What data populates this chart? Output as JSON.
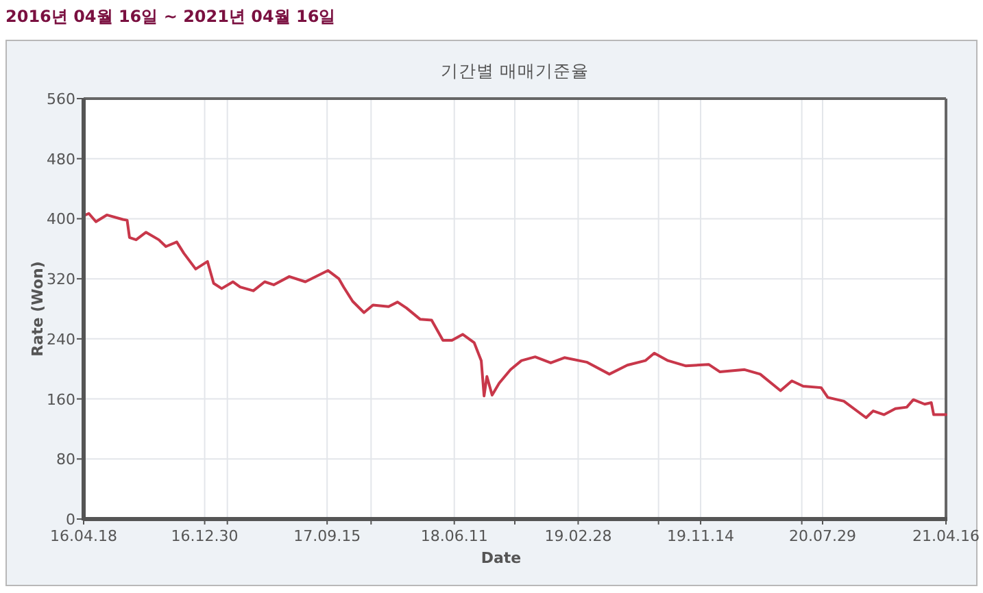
{
  "chart_data": {
    "type": "line",
    "title": "기간별 매매기준율",
    "subtitle": "2016년 04월 16일 ~ 2021년 04월 16일",
    "xlabel": "Date",
    "ylabel": "Rate (Won)",
    "x": [
      "2016-04-18",
      "2016-04-29",
      "2016-05-14",
      "2016-06-06",
      "2016-07-10",
      "2016-07-19",
      "2016-07-24",
      "2016-08-07",
      "2016-08-28",
      "2016-09-24",
      "2016-10-09",
      "2016-11-01",
      "2016-11-16",
      "2016-12-11",
      "2017-01-05",
      "2017-01-18",
      "2017-02-04",
      "2017-02-28",
      "2017-03-15",
      "2017-04-12",
      "2017-05-06",
      "2017-05-25",
      "2017-06-27",
      "2017-07-31",
      "2017-09-17",
      "2017-10-10",
      "2017-10-20",
      "2017-11-08",
      "2017-12-02",
      "2017-12-21",
      "2018-01-23",
      "2018-02-11",
      "2018-03-02",
      "2018-03-31",
      "2018-04-24",
      "2018-05-18",
      "2018-06-06",
      "2018-06-29",
      "2018-07-23",
      "2018-08-07",
      "2018-08-13",
      "2018-08-19",
      "2018-08-30",
      "2018-09-14",
      "2018-10-08",
      "2018-10-31",
      "2018-11-29",
      "2019-01-01",
      "2019-01-30",
      "2019-03-18",
      "2019-05-05",
      "2019-06-12",
      "2019-07-20",
      "2019-08-08",
      "2019-09-06",
      "2019-10-14",
      "2019-12-01",
      "2019-12-25",
      "2020-02-15",
      "2020-03-19",
      "2020-05-01",
      "2020-05-25",
      "2020-06-18",
      "2020-07-26",
      "2020-08-09",
      "2020-09-12",
      "2020-10-29",
      "2020-11-13",
      "2020-12-06",
      "2020-12-30",
      "2021-01-23",
      "2021-02-06",
      "2021-03-02",
      "2021-03-16",
      "2021-03-21",
      "2021-04-16"
    ],
    "series": [
      {
        "color": "#c8374a",
        "values": [
          404,
          407,
          396,
          405,
          399,
          398,
          375,
          372,
          382,
          372,
          363,
          369,
          354,
          333,
          343,
          314,
          307,
          316,
          309,
          304,
          316,
          312,
          323,
          316,
          331,
          320,
          309,
          290,
          275,
          285,
          283,
          289,
          281,
          266,
          265,
          238,
          238,
          246,
          235,
          211,
          164,
          190,
          165,
          181,
          199,
          211,
          216,
          208,
          215,
          209,
          193,
          205,
          211,
          221,
          211,
          204,
          206,
          196,
          199,
          193,
          171,
          184,
          177,
          175,
          162,
          157,
          135,
          144,
          139,
          147,
          149,
          159,
          153,
          155,
          139,
          139
        ]
      }
    ],
    "xlim": [
      "2016-04-18",
      "2021-04-16"
    ],
    "xticks": [
      {
        "value": "2016-04-18",
        "label": "16.04.18"
      },
      {
        "value": "2016-12-30",
        "label": "16.12.30"
      },
      {
        "value": "2017-09-15",
        "label": "17.09.15"
      },
      {
        "value": "2018-06-11",
        "label": "18.06.11"
      },
      {
        "value": "2019-02-28",
        "label": "19.02.28"
      },
      {
        "value": "2019-11-14",
        "label": "19.11.14"
      },
      {
        "value": "2020-07-29",
        "label": "20.07.29"
      },
      {
        "value": "2021-04-16",
        "label": "21.04.16"
      },
      {
        "value": "2017-02-16",
        "label": null
      },
      {
        "value": "2017-12-17",
        "label": null
      },
      {
        "value": "2018-10-17",
        "label": null
      },
      {
        "value": "2019-08-17",
        "label": null
      },
      {
        "value": "2020-06-15",
        "label": null
      }
    ],
    "ylim": [
      0,
      560
    ],
    "yticks": [
      0,
      80,
      160,
      240,
      320,
      400,
      480,
      560
    ],
    "grid": true
  }
}
